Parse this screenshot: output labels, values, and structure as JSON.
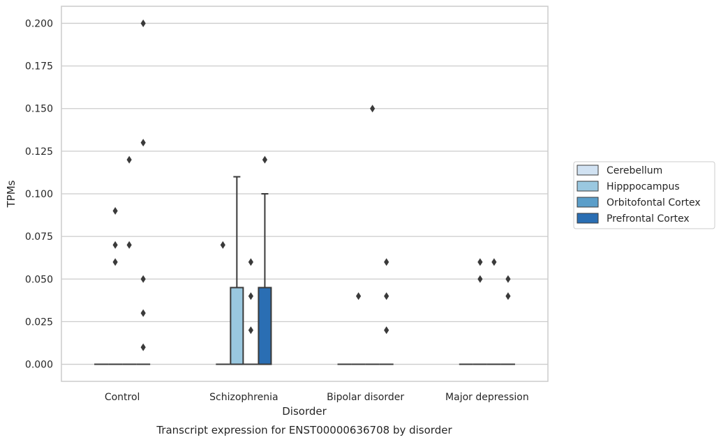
{
  "chart_data": {
    "type": "box",
    "title": "Transcript expression for ENST00000636708 by disorder",
    "xlabel": "Disorder",
    "ylabel": "TPMs",
    "ylim": [
      -0.01,
      0.21
    ],
    "yticks": [
      "0.000",
      "0.025",
      "0.050",
      "0.075",
      "0.100",
      "0.125",
      "0.150",
      "0.175",
      "0.200"
    ],
    "grid": "y",
    "legend_position": "right",
    "categories": [
      "Control",
      "Schizophrenia",
      "Bipolar disorder",
      "Major depression"
    ],
    "series": [
      {
        "name": "Cerebellum",
        "color": "#d1e2f2"
      },
      {
        "name": "Hipppocampus",
        "color": "#9ac8e0"
      },
      {
        "name": "Orbitofontal Cortex",
        "color": "#5b9ec9"
      },
      {
        "name": "Prefrontal Cortex",
        "color": "#2a6eb3"
      }
    ],
    "boxes": [
      [
        {
          "q1": 0,
          "median": 0,
          "q3": 0,
          "whisker_low": 0,
          "whisker_high": 0,
          "outliers": []
        },
        {
          "q1": 0,
          "median": 0,
          "q3": 0,
          "whisker_low": 0,
          "whisker_high": 0,
          "outliers": [
            0.06,
            0.07,
            0.09
          ]
        },
        {
          "q1": 0,
          "median": 0,
          "q3": 0,
          "whisker_low": 0,
          "whisker_high": 0,
          "outliers": [
            0.07,
            0.12
          ]
        },
        {
          "q1": 0,
          "median": 0,
          "q3": 0,
          "whisker_low": 0,
          "whisker_high": 0,
          "outliers": [
            0.01,
            0.03,
            0.13
          ]
        }
      ],
      [
        {
          "q1": 0,
          "median": 0,
          "q3": 0,
          "whisker_low": 0,
          "whisker_high": 0,
          "outliers": [
            0.07
          ]
        },
        {
          "q1": 0,
          "median": 0,
          "q3": 0.045,
          "whisker_low": 0,
          "whisker_high": 0.11,
          "outliers": []
        },
        {
          "q1": 0,
          "median": 0,
          "q3": 0,
          "whisker_low": 0,
          "whisker_high": 0,
          "outliers": [
            0.02,
            0.04,
            0.06
          ]
        },
        {
          "q1": 0,
          "median": 0,
          "q3": 0.045,
          "whisker_low": 0,
          "whisker_high": 0.1,
          "outliers": [
            0.12
          ]
        }
      ],
      [
        {
          "q1": 0,
          "median": 0,
          "q3": 0,
          "whisker_low": 0,
          "whisker_high": 0,
          "outliers": []
        },
        {
          "q1": 0,
          "median": 0,
          "q3": 0,
          "whisker_low": 0,
          "whisker_high": 0,
          "outliers": [
            0.04
          ]
        },
        {
          "q1": 0,
          "median": 0,
          "q3": 0,
          "whisker_low": 0,
          "whisker_high": 0,
          "outliers": [
            0.15
          ]
        },
        {
          "q1": 0,
          "median": 0,
          "q3": 0,
          "whisker_low": 0,
          "whisker_high": 0,
          "outliers": [
            0.02
          ]
        }
      ],
      [
        {
          "q1": 0,
          "median": 0,
          "q3": 0,
          "whisker_low": 0,
          "whisker_high": 0,
          "outliers": []
        },
        {
          "q1": 0,
          "median": 0,
          "q3": 0,
          "whisker_low": 0,
          "whisker_high": 0,
          "outliers": [
            0.05,
            0.06
          ]
        },
        {
          "q1": 0,
          "median": 0,
          "q3": 0,
          "whisker_low": 0,
          "whisker_high": 0,
          "outliers": [
            0.06
          ]
        },
        {
          "q1": 0,
          "median": 0,
          "q3": 0,
          "whisker_low": 0,
          "whisker_high": 0,
          "outliers": [
            0.05
          ]
        }
      ]
    ],
    "extra_outliers": [
      {
        "category": 0,
        "series": 3,
        "value": 0.05
      },
      {
        "category": 0,
        "series": 3,
        "value": 0.2
      },
      {
        "category": 2,
        "series": 3,
        "value": 0.04
      },
      {
        "category": 2,
        "series": 3,
        "value": 0.06
      },
      {
        "category": 3,
        "series": 3,
        "value": 0.04
      }
    ]
  }
}
